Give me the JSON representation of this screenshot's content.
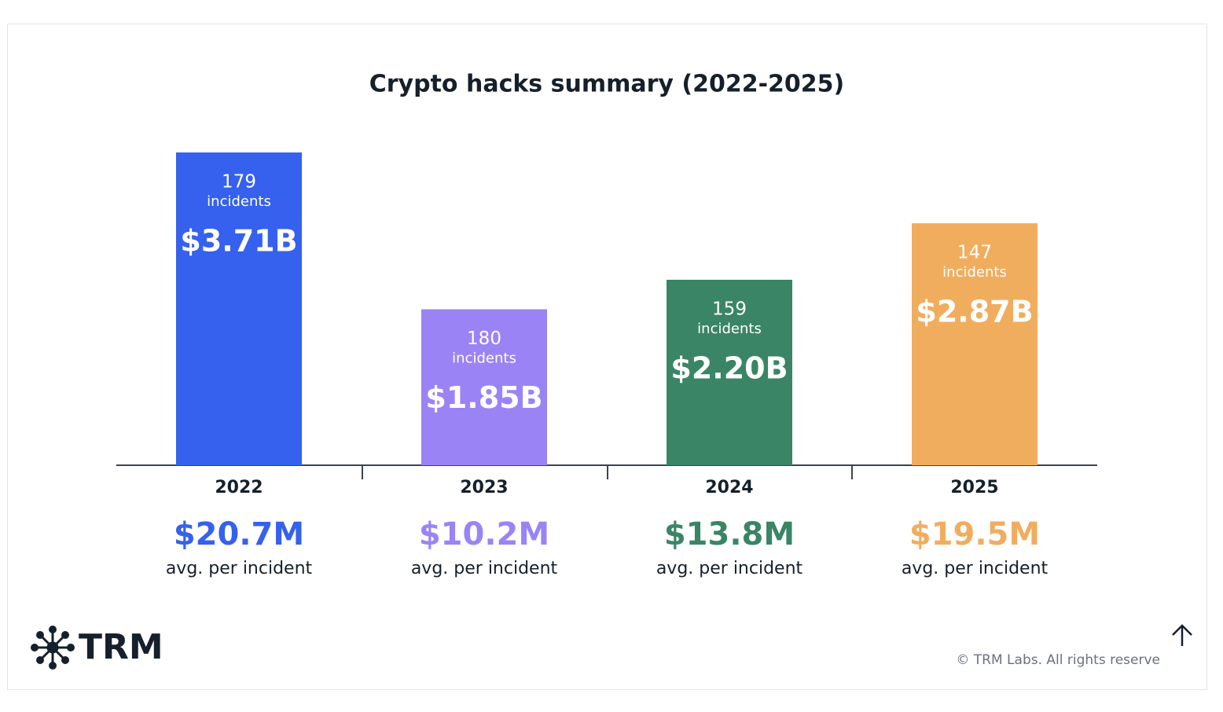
{
  "chart_data": {
    "type": "bar",
    "title": "Crypto hacks summary (2022-2025)",
    "categories": [
      "2022",
      "2023",
      "2024",
      "2025"
    ],
    "values": [
      3.71,
      1.85,
      2.2,
      2.87
    ],
    "value_labels": [
      "$3.71B",
      "$1.85B",
      "$2.20B",
      "$2.87B"
    ],
    "colors": [
      "#3561ee",
      "#9a84f5",
      "#3a8566",
      "#f1ad5e"
    ],
    "incidents": [
      179,
      180,
      159,
      147
    ],
    "incidents_label": "incidents",
    "avg_per_incident": [
      20.7,
      10.2,
      13.8,
      19.5
    ],
    "avg_per_incident_labels": [
      "$20.7M",
      "$10.2M",
      "$13.8M",
      "$19.5M"
    ],
    "avg_label": "avg. per incident"
  },
  "footer": {
    "logo": "TRM",
    "copyright": "© TRM Labs. All rights reserve"
  }
}
